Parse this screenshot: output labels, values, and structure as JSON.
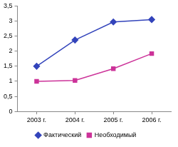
{
  "chart_data": {
    "type": "line",
    "categories": [
      "2003 г.",
      "2004 г.",
      "2005 г.",
      "2006 г."
    ],
    "series": [
      {
        "name": "Фактический",
        "color": "#3344bb",
        "marker": "diamond",
        "values": [
          1.5,
          2.37,
          2.97,
          3.05
        ]
      },
      {
        "name": "Необходимый",
        "color": "#cc3399",
        "marker": "square",
        "values": [
          1.0,
          1.03,
          1.42,
          1.92
        ]
      }
    ],
    "ylim": [
      0,
      3.5
    ],
    "yticks": [
      0,
      {
        "value": 0.5,
        "label": "0,5"
      },
      1,
      {
        "value": 1.5,
        "label": "1,5"
      },
      2,
      {
        "value": 2.5,
        "label": "2,5"
      },
      3,
      {
        "value": 3.5,
        "label": "3,5"
      }
    ],
    "grid": false,
    "legend": "bottom"
  }
}
